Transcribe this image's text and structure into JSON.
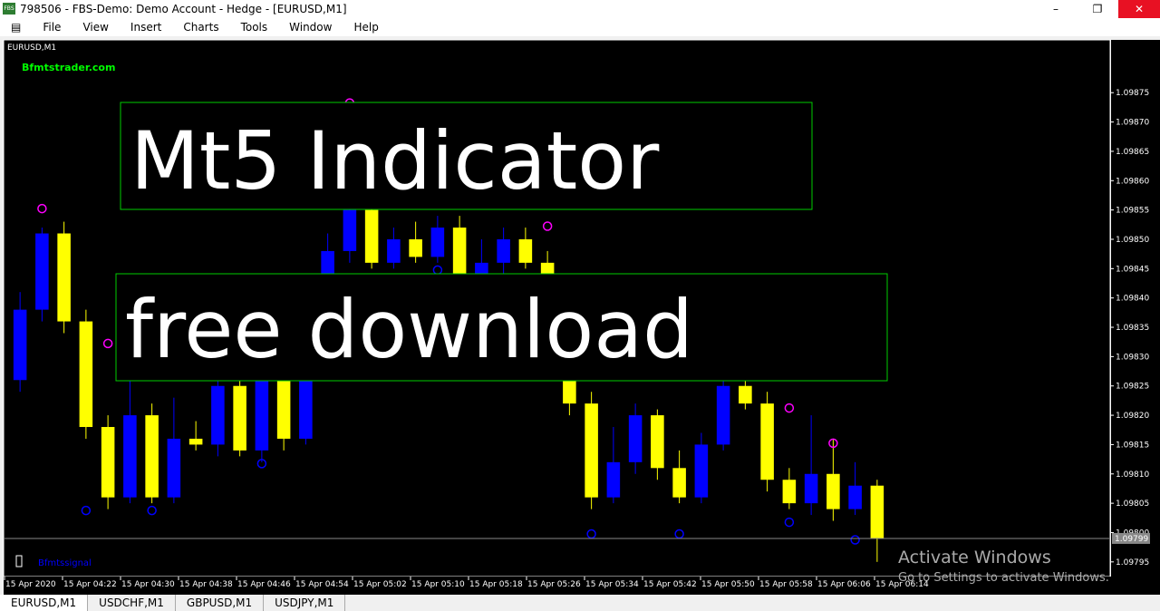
{
  "window": {
    "title": "798506 - FBS-Demo: Demo Account - Hedge - [EURUSD,M1]",
    "icon": "FBS"
  },
  "menu": [
    "File",
    "View",
    "Insert",
    "Charts",
    "Tools",
    "Window",
    "Help"
  ],
  "tabs": [
    "EURUSD,M1",
    "USDCHF,M1",
    "GBPUSD,M1",
    "USDJPY,M1"
  ],
  "overlay": {
    "line1": "Mt5 Indicator",
    "line2": "free download"
  },
  "watermark": {
    "site": "Bfmtstrader.com",
    "signal": "Bfmtssignal"
  },
  "activation": {
    "title": "Activate Windows",
    "text": "Go to Settings to activate Windows."
  },
  "chart_data": {
    "type": "candlestick",
    "symbol": "EURUSD,M1",
    "up_color": "#0000ff",
    "down_color": "#ffff00",
    "top_signal_color": "#ff00ff",
    "bottom_signal_color": "#0000ff",
    "ylim": [
      1.097925,
      1.09884
    ],
    "yticks": [
      1.09875,
      {
        "value": 1.0987,
        "label": "1.09870"
      },
      1.09865,
      {
        "value": 1.0986,
        "label": "1.09860"
      },
      1.09855,
      {
        "value": 1.0985,
        "label": "1.09850"
      },
      1.09845,
      {
        "value": 1.0984,
        "label": "1.09840"
      },
      1.09835,
      {
        "value": 1.0983,
        "label": "1.09830"
      },
      1.09825,
      {
        "value": 1.0982,
        "label": "1.09820"
      },
      1.09815,
      {
        "value": 1.0981,
        "label": "1.09810"
      },
      1.09805,
      {
        "value": 1.098,
        "label": "1.09800"
      },
      1.09795
    ],
    "x_labels": [
      "15 Apr 2020",
      "15 Apr 04:22",
      "15 Apr 04:30",
      "15 Apr 04:38",
      "15 Apr 04:46",
      "15 Apr 04:54",
      "15 Apr 05:02",
      "15 Apr 05:10",
      "15 Apr 05:18",
      "15 Apr 05:26",
      "15 Apr 05:34",
      "15 Apr 05:42",
      "15 Apr 05:50",
      "15 Apr 05:58",
      "15 Apr 06:06",
      "15 Apr 06:14"
    ],
    "current_price": 1.09799,
    "candles": [
      {
        "o": 1.09826,
        "h": 1.09841,
        "l": 1.09824,
        "c": 1.09838
      },
      {
        "o": 1.09838,
        "h": 1.09852,
        "l": 1.09836,
        "c": 1.09851
      },
      {
        "o": 1.09851,
        "h": 1.09853,
        "l": 1.09834,
        "c": 1.09836
      },
      {
        "o": 1.09836,
        "h": 1.09838,
        "l": 1.09816,
        "c": 1.09818
      },
      {
        "o": 1.09818,
        "h": 1.0982,
        "l": 1.09804,
        "c": 1.09806
      },
      {
        "o": 1.09806,
        "h": 1.09831,
        "l": 1.09805,
        "c": 1.0982
      },
      {
        "o": 1.0982,
        "h": 1.09822,
        "l": 1.09805,
        "c": 1.09806
      },
      {
        "o": 1.09806,
        "h": 1.09823,
        "l": 1.09805,
        "c": 1.09816
      },
      {
        "o": 1.09816,
        "h": 1.09819,
        "l": 1.09814,
        "c": 1.09815
      },
      {
        "o": 1.09815,
        "h": 1.09828,
        "l": 1.09813,
        "c": 1.09825
      },
      {
        "o": 1.09825,
        "h": 1.09827,
        "l": 1.09813,
        "c": 1.09814
      },
      {
        "o": 1.09814,
        "h": 1.09838,
        "l": 1.09812,
        "c": 1.09835
      },
      {
        "o": 1.09835,
        "h": 1.09837,
        "l": 1.09814,
        "c": 1.09816
      },
      {
        "o": 1.09816,
        "h": 1.09844,
        "l": 1.09815,
        "c": 1.09841
      },
      {
        "o": 1.09841,
        "h": 1.09851,
        "l": 1.09839,
        "c": 1.09848
      },
      {
        "o": 1.09848,
        "h": 1.09872,
        "l": 1.09846,
        "c": 1.09855
      },
      {
        "o": 1.09855,
        "h": 1.09858,
        "l": 1.09845,
        "c": 1.09846
      },
      {
        "o": 1.09846,
        "h": 1.09852,
        "l": 1.09845,
        "c": 1.0985
      },
      {
        "o": 1.0985,
        "h": 1.09853,
        "l": 1.09846,
        "c": 1.09847
      },
      {
        "o": 1.09847,
        "h": 1.09854,
        "l": 1.09846,
        "c": 1.09852
      },
      {
        "o": 1.09852,
        "h": 1.09854,
        "l": 1.09838,
        "c": 1.0984
      },
      {
        "o": 1.0984,
        "h": 1.0985,
        "l": 1.09839,
        "c": 1.09846
      },
      {
        "o": 1.09846,
        "h": 1.09852,
        "l": 1.09844,
        "c": 1.0985
      },
      {
        "o": 1.0985,
        "h": 1.09852,
        "l": 1.09845,
        "c": 1.09846
      },
      {
        "o": 1.09846,
        "h": 1.09848,
        "l": 1.09838,
        "c": 1.0984
      },
      {
        "o": 1.0984,
        "h": 1.09842,
        "l": 1.0982,
        "c": 1.09822
      },
      {
        "o": 1.09822,
        "h": 1.09824,
        "l": 1.09804,
        "c": 1.09806
      },
      {
        "o": 1.09806,
        "h": 1.09818,
        "l": 1.09805,
        "c": 1.09812
      },
      {
        "o": 1.09812,
        "h": 1.09822,
        "l": 1.0981,
        "c": 1.0982
      },
      {
        "o": 1.0982,
        "h": 1.09821,
        "l": 1.09809,
        "c": 1.09811
      },
      {
        "o": 1.09811,
        "h": 1.09814,
        "l": 1.09805,
        "c": 1.09806
      },
      {
        "o": 1.09806,
        "h": 1.09817,
        "l": 1.09805,
        "c": 1.09815
      },
      {
        "o": 1.09815,
        "h": 1.09828,
        "l": 1.09814,
        "c": 1.09825
      },
      {
        "o": 1.09825,
        "h": 1.09827,
        "l": 1.09821,
        "c": 1.09822
      },
      {
        "o": 1.09822,
        "h": 1.09824,
        "l": 1.09807,
        "c": 1.09809
      },
      {
        "o": 1.09809,
        "h": 1.09811,
        "l": 1.09804,
        "c": 1.09805
      },
      {
        "o": 1.09805,
        "h": 1.0982,
        "l": 1.09803,
        "c": 1.0981
      },
      {
        "o": 1.0981,
        "h": 1.09816,
        "l": 1.09802,
        "c": 1.09804
      },
      {
        "o": 1.09804,
        "h": 1.09812,
        "l": 1.09803,
        "c": 1.09808
      },
      {
        "o": 1.09808,
        "h": 1.09809,
        "l": 1.09795,
        "c": 1.09799
      }
    ],
    "signals": [
      {
        "index": 1,
        "price": 1.09854,
        "kind": "top"
      },
      {
        "index": 4,
        "price": 1.09831,
        "kind": "top"
      },
      {
        "index": 15,
        "price": 1.09872,
        "kind": "top"
      },
      {
        "index": 24,
        "price": 1.09851,
        "kind": "top"
      },
      {
        "index": 35,
        "price": 1.0982,
        "kind": "top"
      },
      {
        "index": 37,
        "price": 1.09814,
        "kind": "top"
      },
      {
        "index": 3,
        "price": 1.09805,
        "kind": "bottom"
      },
      {
        "index": 6,
        "price": 1.09805,
        "kind": "bottom"
      },
      {
        "index": 11,
        "price": 1.09813,
        "kind": "bottom"
      },
      {
        "index": 19,
        "price": 1.09846,
        "kind": "bottom"
      },
      {
        "index": 26,
        "price": 1.09801,
        "kind": "bottom"
      },
      {
        "index": 30,
        "price": 1.09801,
        "kind": "bottom"
      },
      {
        "index": 35,
        "price": 1.09803,
        "kind": "bottom"
      },
      {
        "index": 38,
        "price": 1.098,
        "kind": "bottom"
      }
    ]
  }
}
